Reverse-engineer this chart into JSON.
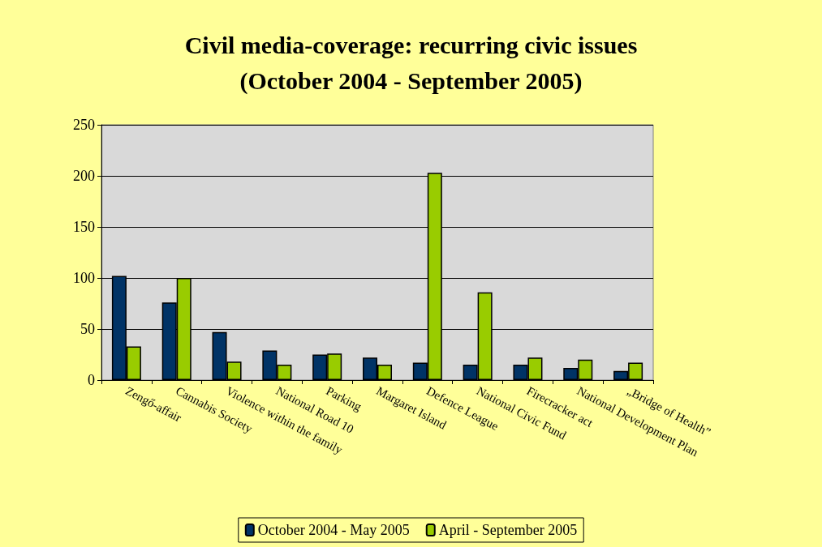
{
  "chart_data": {
    "type": "bar",
    "title": "Civil media-coverage: recurring civic issues\n(October 2004 - September 2005)",
    "categories": [
      "Zengő-affair",
      "Cannabis Society",
      "Violence within the family",
      "National Road 10",
      "Parking",
      "Margaret Island",
      "Defence League",
      "National Civic Fund",
      "Firecracker act",
      "National Development Plan",
      "„Bridge of Health”"
    ],
    "series": [
      {
        "name": "October 2004 - May 2005",
        "color": "#003366",
        "values": [
          102,
          76,
          47,
          29,
          25,
          22,
          17,
          15,
          15,
          12,
          9
        ]
      },
      {
        "name": "April - September 2005",
        "color": "#99cc00",
        "values": [
          33,
          100,
          18,
          15,
          26,
          15,
          203,
          86,
          22,
          20,
          17
        ]
      }
    ],
    "ylim": [
      0,
      250
    ],
    "yticks": [
      0,
      50,
      100,
      150,
      200,
      250
    ],
    "grid": "y",
    "legend": "bottom"
  }
}
